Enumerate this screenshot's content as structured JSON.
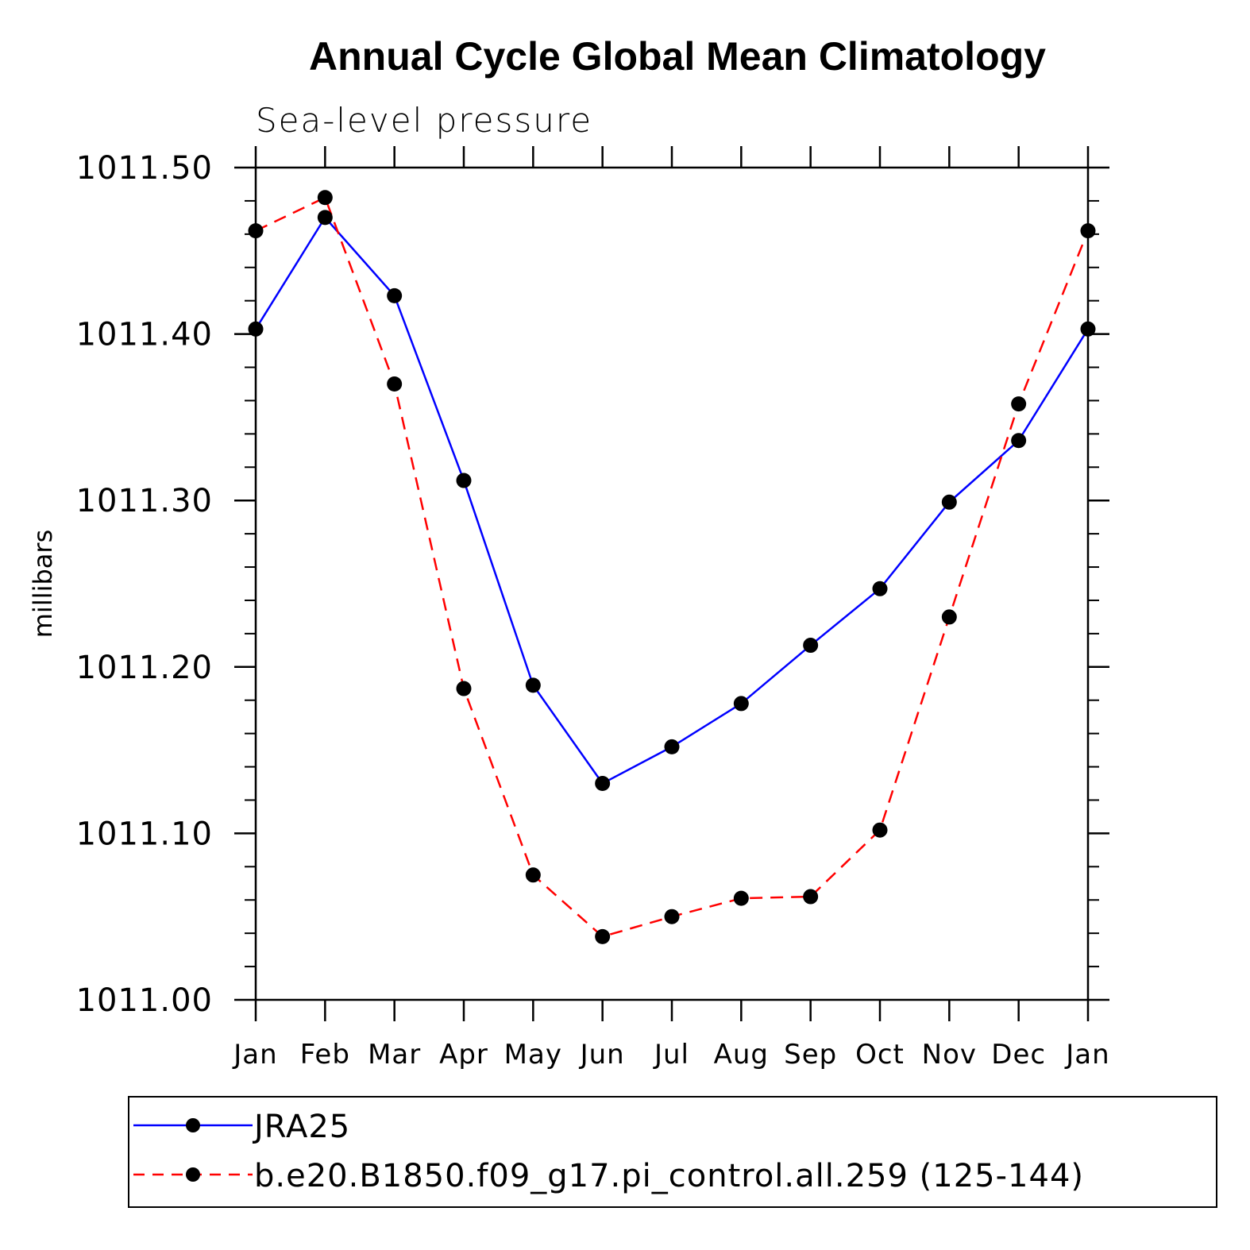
{
  "chart_data": {
    "type": "line",
    "title": "Annual Cycle Global Mean Climatology",
    "subtitle": "Sea-level pressure",
    "xlabel": "",
    "ylabel": "millibars",
    "categories": [
      "Jan",
      "Feb",
      "Mar",
      "Apr",
      "May",
      "Jun",
      "Jul",
      "Aug",
      "Sep",
      "Oct",
      "Nov",
      "Dec",
      "Jan"
    ],
    "ylim": [
      1011.0,
      1011.5
    ],
    "yticks": [
      "1011.00",
      "1011.10",
      "1011.20",
      "1011.30",
      "1011.40",
      "1011.50"
    ],
    "grid": false,
    "legend_position": "bottom",
    "series": [
      {
        "name": "JRA25",
        "color": "#0000ff",
        "dash": "solid",
        "marker": "filled-circle",
        "values": [
          1011.403,
          1011.47,
          1011.423,
          1011.312,
          1011.189,
          1011.13,
          1011.152,
          1011.178,
          1011.213,
          1011.247,
          1011.299,
          1011.336,
          1011.403
        ]
      },
      {
        "name": "b.e20.B1850.f09_g17.pi_control.all.259 (125-144)",
        "color": "#ff0000",
        "dash": "dashed",
        "marker": "filled-circle",
        "values": [
          1011.462,
          1011.482,
          1011.37,
          1011.187,
          1011.075,
          1011.038,
          1011.05,
          1011.061,
          1011.062,
          1011.102,
          1011.23,
          1011.358,
          1011.462
        ]
      }
    ]
  }
}
